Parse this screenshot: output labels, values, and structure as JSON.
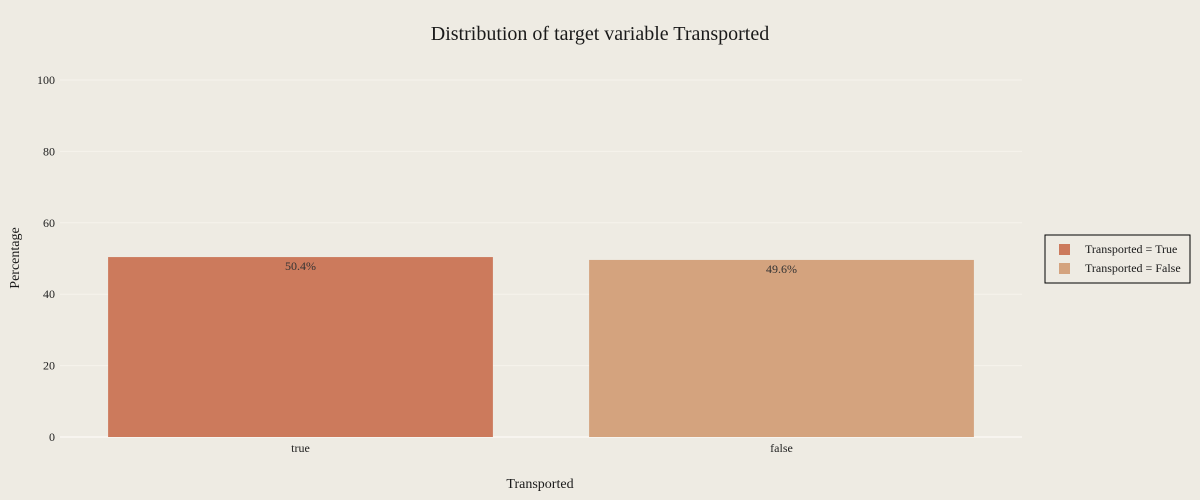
{
  "chart_data": {
    "type": "bar",
    "title": "Distribution of target variable Transported",
    "xlabel": "Transported",
    "ylabel": "Percentage",
    "categories": [
      "true",
      "false"
    ],
    "series": [
      {
        "name": "Transported = True",
        "category": "true",
        "value": 50.4,
        "label": "50.4%",
        "color": "#CC7A5C"
      },
      {
        "name": "Transported = False",
        "category": "false",
        "value": 49.6,
        "label": "49.6%",
        "color": "#D4A37E"
      }
    ],
    "yticks": [
      0,
      20,
      40,
      60,
      80,
      100
    ],
    "ylim": [
      0,
      100
    ],
    "grid": true,
    "legend_position": "right",
    "background": "#EEEBE3"
  }
}
